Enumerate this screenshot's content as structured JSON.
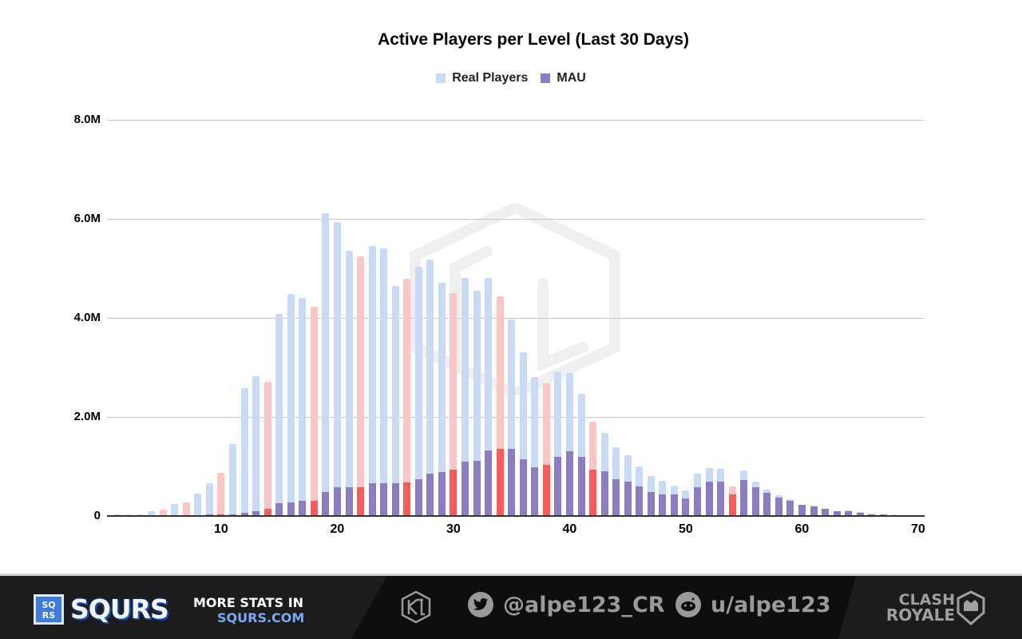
{
  "chart_data": {
    "type": "bar",
    "title": "Active Players per Level (Last 30 Days)",
    "xlabel": "",
    "ylabel": "",
    "ylim": [
      0,
      8000000
    ],
    "grid": true,
    "legend_position": "top",
    "y_ticks": [
      "0",
      "2.0M",
      "4.0M",
      "6.0M",
      "8.0M"
    ],
    "x_ticks": [
      "10",
      "20",
      "30",
      "40",
      "50",
      "60",
      "70"
    ],
    "categories": [
      1,
      2,
      3,
      4,
      5,
      6,
      7,
      8,
      9,
      10,
      11,
      12,
      13,
      14,
      15,
      16,
      17,
      18,
      19,
      20,
      21,
      22,
      23,
      24,
      25,
      26,
      27,
      28,
      29,
      30,
      31,
      32,
      33,
      34,
      35,
      36,
      37,
      38,
      39,
      40,
      41,
      42,
      43,
      44,
      45,
      46,
      47,
      48,
      49,
      50,
      51,
      52,
      53,
      54,
      55,
      56,
      57,
      58,
      59,
      60,
      61,
      62,
      63,
      64,
      65,
      66,
      67,
      68,
      69,
      70
    ],
    "highlighted_levels": [
      1,
      2,
      3,
      5,
      7,
      10,
      14,
      18,
      22,
      26,
      30,
      34,
      38,
      42,
      54
    ],
    "series": [
      {
        "name": "Real Players",
        "color": "#c9daf5",
        "highlight_color": "#fcc5c5",
        "values": [
          0.03,
          0.03,
          0.03,
          0.1,
          0.13,
          0.24,
          0.27,
          0.45,
          0.66,
          0.87,
          1.45,
          2.58,
          2.82,
          2.71,
          4.08,
          4.48,
          4.4,
          4.23,
          6.11,
          5.94,
          5.35,
          5.24,
          5.45,
          5.4,
          4.65,
          4.79,
          5.03,
          5.18,
          4.71,
          4.5,
          4.81,
          4.55,
          4.81,
          4.44,
          3.97,
          3.31,
          2.81,
          2.68,
          2.9,
          2.89,
          2.47,
          1.9,
          1.68,
          1.39,
          1.22,
          1.0,
          0.81,
          0.71,
          0.61,
          0.52,
          0.86,
          0.97,
          0.95,
          0.6,
          0.92,
          0.69,
          0.53,
          0.42,
          0.34,
          0.23,
          0.21,
          0.15,
          0.1,
          0.11,
          0.08,
          0.05,
          0.04,
          0.03,
          0.02,
          0.02
        ],
        "unit": "millions"
      },
      {
        "name": "MAU",
        "color": "#8c7cc3",
        "highlight_color": "#ff5a5a",
        "values": [
          0.01,
          0.01,
          0.01,
          0.01,
          0.01,
          0.01,
          0.01,
          0.02,
          0.03,
          0.04,
          0.04,
          0.07,
          0.1,
          0.15,
          0.26,
          0.28,
          0.31,
          0.3,
          0.48,
          0.58,
          0.58,
          0.58,
          0.66,
          0.66,
          0.66,
          0.68,
          0.75,
          0.86,
          0.88,
          0.93,
          1.09,
          1.11,
          1.33,
          1.35,
          1.35,
          1.15,
          0.99,
          1.03,
          1.19,
          1.31,
          1.19,
          0.93,
          0.9,
          0.74,
          0.69,
          0.59,
          0.48,
          0.43,
          0.44,
          0.36,
          0.58,
          0.69,
          0.7,
          0.44,
          0.72,
          0.58,
          0.46,
          0.37,
          0.31,
          0.23,
          0.2,
          0.14,
          0.1,
          0.1,
          0.07,
          0.04,
          0.04,
          0.02,
          0.01,
          0.02
        ],
        "unit": "millions"
      }
    ]
  },
  "footer": {
    "brand_badge": [
      "SQ",
      "RS"
    ],
    "brand_name": "SQURS",
    "more_stats_line1": "MORE STATS IN",
    "more_stats_line2": "SQURS.COM",
    "twitter_handle": "@alpe123_CR",
    "reddit_handle": "u/alpe123",
    "game_logo_line1": "CLASH",
    "game_logo_line2": "ROYALE"
  }
}
